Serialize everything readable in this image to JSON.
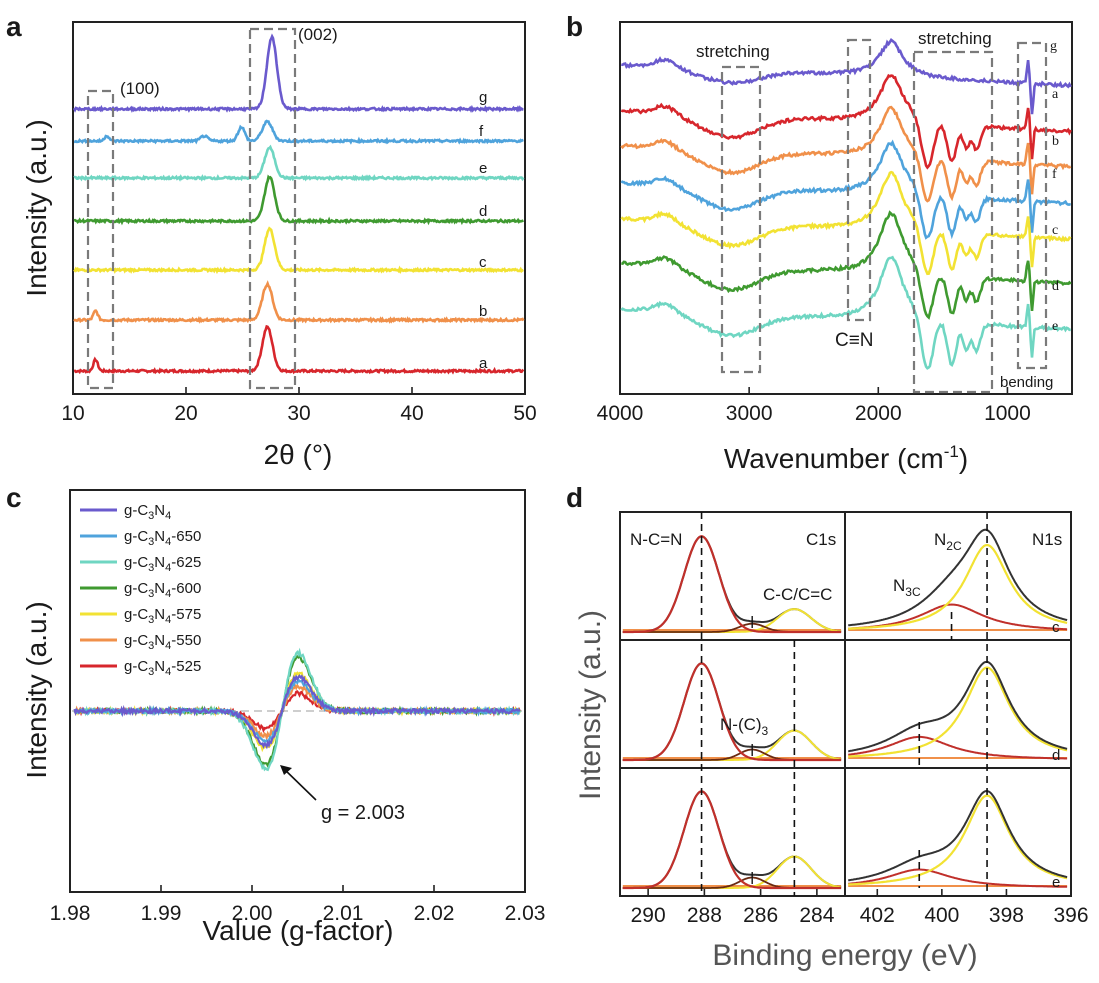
{
  "panels": {
    "a": {
      "letter": "a",
      "xlabel": "2θ (°)",
      "ylabel": "Intensity (a.u.)",
      "xticks": [
        "10",
        "20",
        "30",
        "40",
        "50"
      ],
      "box_100": "(100)",
      "box_002": "(002)"
    },
    "b": {
      "letter": "b",
      "xlabel_main": "Wavenumber (cm",
      "xlabel_sup": "-1",
      "xlabel_end": ")",
      "xticks": [
        "4000",
        "3000",
        "2000",
        "1000"
      ],
      "annotations": {
        "stretch1": "stretching",
        "stretch2": "stretching",
        "cn": "C≡N",
        "bend": "bending"
      }
    },
    "c": {
      "letter": "c",
      "xlabel": "Value (g-factor)",
      "ylabel": "Intensity (a.u.)",
      "xticks": [
        "1.98",
        "1.99",
        "2.00",
        "2.01",
        "2.02",
        "2.03"
      ],
      "gvalue": "g = 2.003"
    },
    "d": {
      "letter": "d",
      "xlabel": "Binding energy (eV)",
      "ylabel": "Intensity (a.u.)",
      "left_xticks": [
        "290",
        "288",
        "286",
        "284"
      ],
      "right_xticks": [
        "402",
        "400",
        "398",
        "396"
      ],
      "c1s": "C1s",
      "n1s": "N1s",
      "ncn": "N-C=N",
      "cc": "C-C/C=C",
      "nc3": "N-(C)",
      "nc3_sub": "3",
      "n2c": "N",
      "n2c_sub": "2C",
      "n3c": "N",
      "n3c_sub": "3C",
      "row_labels": [
        "c",
        "d",
        "e"
      ]
    }
  },
  "colors": {
    "g": "#6a5acd",
    "a": "#d7262c",
    "b": "#f0904a",
    "c": "#f2e233",
    "d": "#3f9a30",
    "e": "#6fd6c2",
    "f": "#4fa3dc"
  },
  "chart_data": [
    {
      "type": "line",
      "panel": "a",
      "title": "",
      "xlabel": "2θ (°)",
      "ylabel": "Intensity (a.u.)",
      "xlim": [
        10,
        50
      ],
      "series": [
        {
          "name": "a",
          "color": "#d7262c",
          "main_peak": {
            "x": 27.2,
            "height": 0.8
          },
          "minor_peak": {
            "x": 12.0,
            "height": 0.25
          }
        },
        {
          "name": "b",
          "color": "#f0904a",
          "main_peak": {
            "x": 27.2,
            "height": 0.65
          },
          "minor_peak": {
            "x": 12.0,
            "height": 0.2
          }
        },
        {
          "name": "c",
          "color": "#f2e233",
          "main_peak": {
            "x": 27.4,
            "height": 0.75
          }
        },
        {
          "name": "d",
          "color": "#3f9a30",
          "main_peak": {
            "x": 27.4,
            "height": 0.8
          }
        },
        {
          "name": "e",
          "color": "#6fd6c2",
          "main_peak": {
            "x": 27.4,
            "height": 0.55
          }
        },
        {
          "name": "f",
          "color": "#4fa3dc",
          "main_peak": {
            "x": 27.2,
            "height": 0.35
          },
          "minor_peak": {
            "x": 13.0,
            "height": 0.12
          }
        },
        {
          "name": "g",
          "color": "#6a5acd",
          "main_peak": {
            "x": 27.6,
            "height": 1.3
          }
        }
      ]
    },
    {
      "type": "line",
      "panel": "b",
      "xlabel": "Wavenumber (cm-1)",
      "xlim": [
        4000,
        500
      ],
      "order_top_to_bottom": [
        "g",
        "a",
        "b",
        "f",
        "c",
        "d",
        "e"
      ]
    },
    {
      "type": "line",
      "panel": "c",
      "xlabel": "Value (g-factor)",
      "ylabel": "Intensity (a.u.)",
      "xlim": [
        1.98,
        2.03
      ],
      "center_g": 2.003,
      "series": [
        {
          "name": "g-C3N4",
          "color": "#6a5acd",
          "amplitude": 0.62
        },
        {
          "name": "g-C3N4-650",
          "color": "#4fa3dc",
          "amplitude": 0.55
        },
        {
          "name": "g-C3N4-625",
          "color": "#6fd6c2",
          "amplitude": 1.05
        },
        {
          "name": "g-C3N4-600",
          "color": "#3f9a30",
          "amplitude": 0.98
        },
        {
          "name": "g-C3N4-575",
          "color": "#f2e233",
          "amplitude": 0.68
        },
        {
          "name": "g-C3N4-550",
          "color": "#f0904a",
          "amplitude": 0.45
        },
        {
          "name": "g-C3N4-525",
          "color": "#d7262c",
          "amplitude": 0.32
        }
      ],
      "legend": [
        {
          "main": "g-C",
          "sub1": "3",
          "mid": "N",
          "sub2": "4",
          "tail": ""
        },
        {
          "main": "g-C",
          "sub1": "3",
          "mid": "N",
          "sub2": "4",
          "tail": "-650"
        },
        {
          "main": "g-C",
          "sub1": "3",
          "mid": "N",
          "sub2": "4",
          "tail": "-625"
        },
        {
          "main": "g-C",
          "sub1": "3",
          "mid": "N",
          "sub2": "4",
          "tail": "-600"
        },
        {
          "main": "g-C",
          "sub1": "3",
          "mid": "N",
          "sub2": "4",
          "tail": "-575"
        },
        {
          "main": "g-C",
          "sub1": "3",
          "mid": "N",
          "sub2": "4",
          "tail": "-550"
        },
        {
          "main": "g-C",
          "sub1": "3",
          "mid": "N",
          "sub2": "4",
          "tail": "-525"
        }
      ]
    },
    {
      "type": "line",
      "panel": "d",
      "xlabel": "Binding energy (eV)",
      "ylabel": "Intensity (a.u.)",
      "c1s_xlim": [
        291,
        283
      ],
      "n1s_xlim": [
        403,
        396
      ],
      "c1s_peaks": {
        "N-C=N": 288.1,
        "N-(C)3": 286.3,
        "C-C/C=C": 284.8
      },
      "n1s_peaks": {
        "N2C": 398.6,
        "N3C": 400.0
      }
    }
  ]
}
